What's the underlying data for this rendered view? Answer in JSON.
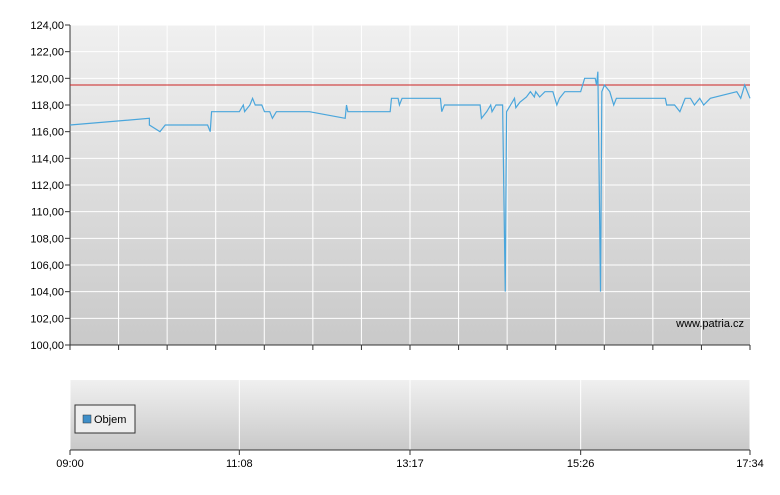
{
  "chart_data": [
    {
      "type": "line",
      "annotation": "www.patria.cz",
      "color": "#4aa6dc",
      "x": [
        "09:00",
        "10:00",
        "10:00",
        "10:08",
        "10:12",
        "10:44",
        "10:46",
        "10:47",
        "11:08",
        "11:11",
        "11:12",
        "11:16",
        "11:18",
        "11:20",
        "11:25",
        "11:27",
        "11:31",
        "11:33",
        "11:36",
        "12:01",
        "12:28",
        "12:29",
        "12:30",
        "13:02",
        "13:03",
        "13:08",
        "13:09",
        "13:11",
        "13:40",
        "13:41",
        "13:43",
        "14:10",
        "14:11",
        "14:15",
        "14:18",
        "14:19",
        "14:22",
        "14:27",
        "14:29",
        "14:30",
        "14:33",
        "14:36",
        "14:37",
        "14:40",
        "14:45",
        "14:48",
        "14:51",
        "14:52",
        "14:55",
        "14:59",
        "15:05",
        "15:08",
        "15:10",
        "15:14",
        "15:26",
        "15:29",
        "15:37",
        "15:38",
        "15:39",
        "15:41",
        "15:42",
        "15:44",
        "15:48",
        "15:51",
        "15:53",
        "16:30",
        "16:31",
        "16:37",
        "16:41",
        "16:45",
        "16:49",
        "16:52",
        "16:56",
        "16:59",
        "17:04",
        "17:24",
        "17:27",
        "17:30",
        "17:34"
      ],
      "values": [
        116.5,
        117,
        116.5,
        116,
        116.5,
        116.5,
        116,
        117.5,
        117.5,
        118,
        117.5,
        118,
        118.5,
        118,
        118,
        117.5,
        117.5,
        117,
        117.5,
        117.5,
        117,
        118,
        117.5,
        117.5,
        118.5,
        118.5,
        118,
        118.5,
        118.5,
        117.5,
        118,
        118,
        117,
        117.5,
        118,
        117.5,
        118,
        118,
        104,
        117.5,
        118,
        118.5,
        117.8,
        118.2,
        118.6,
        119,
        118.6,
        119,
        118.6,
        119,
        119,
        118,
        118.5,
        119,
        119,
        120,
        120,
        119.5,
        120.5,
        104,
        119,
        119.5,
        119,
        118,
        118.5,
        118.5,
        118,
        118,
        117.5,
        118.5,
        118.5,
        118,
        118.5,
        118,
        118.5,
        119,
        118.5,
        119.5,
        118.5
      ],
      "reference_line": {
        "value": 119.5,
        "color": "#cc2222"
      },
      "xlim": [
        "09:00",
        "17:34"
      ],
      "ylim": [
        100,
        124
      ],
      "yticks": [
        {
          "value": 100,
          "label": "100,00"
        },
        {
          "value": 102,
          "label": "102,00"
        },
        {
          "value": 104,
          "label": "104,00"
        },
        {
          "value": 106,
          "label": "106,00"
        },
        {
          "value": 108,
          "label": "108,00"
        },
        {
          "value": 110,
          "label": "110,00"
        },
        {
          "value": 112,
          "label": "112,00"
        },
        {
          "value": 114,
          "label": "114,00"
        },
        {
          "value": 116,
          "label": "116,00"
        },
        {
          "value": 118,
          "label": "118,00"
        },
        {
          "value": 120,
          "label": "120,00"
        },
        {
          "value": 122,
          "label": "122,00"
        },
        {
          "value": 124,
          "label": "124,00"
        }
      ],
      "grid": true
    },
    {
      "type": "bar",
      "series": [
        {
          "name": "Objem",
          "color": "#3f8fc9",
          "values": []
        }
      ],
      "xlim": [
        "09:00",
        "17:34"
      ],
      "xticks": [
        "09:00",
        "11:08",
        "13:17",
        "15:26",
        "17:34"
      ],
      "grid": true
    }
  ]
}
